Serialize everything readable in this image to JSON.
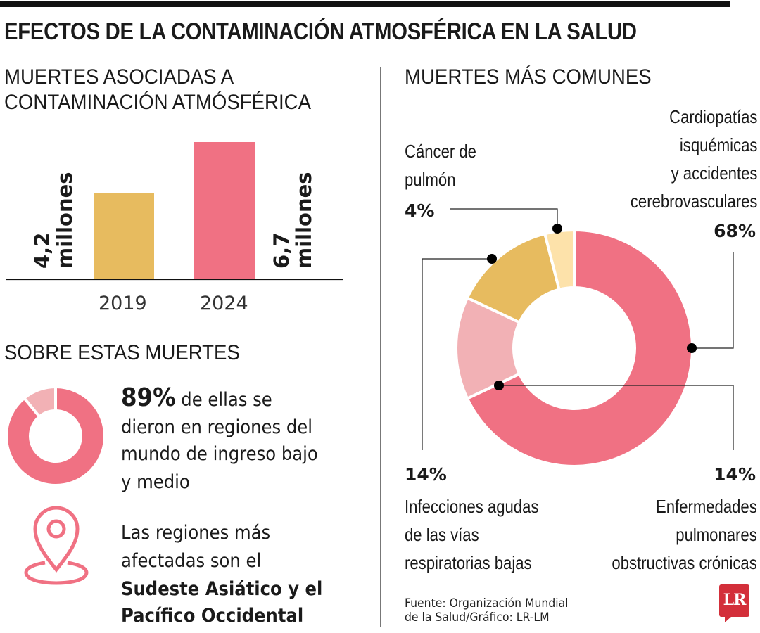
{
  "title": "EFECTOS DE LA CONTAMINACIÓN ATMOSFÉRICA EN LA SALUD",
  "colors": {
    "pink": "#f07183",
    "light_pink": "#f2b1b5",
    "gold": "#e7bb5f",
    "pale_yellow": "#fde2aa",
    "text": "#1a1a1a",
    "brand_red": "#d32f3a"
  },
  "bar_section": {
    "title_line1": "MUERTES ASOCIADAS A",
    "title_line2": "CONTAMINACIÓN ATMÓSFÉRICA"
  },
  "about_section": {
    "title": "SOBRE ESTAS MUERTES",
    "stat_value": "89%",
    "stat_text_1": " de ellas se",
    "stat_text_2": "dieron en regiones del",
    "stat_text_3": "mundo de ingreso bajo",
    "stat_text_4": "y medio",
    "regions_1": "Las regiones más",
    "regions_2": "afectadas son el",
    "regions_bold_1": "Sudeste Asiático y el",
    "regions_bold_2": "Pacífico Occidental",
    "icon": "map-pin-icon"
  },
  "donut_section": {
    "title": "MUERTES MÁS COMUNES"
  },
  "source": {
    "line1": "Fuente: Organización Mundial",
    "line2": "de la Salud/Gráfico: LR-LM"
  },
  "logo": {
    "text": "LR"
  },
  "chart_data": [
    {
      "type": "bar",
      "categories": [
        "2019",
        "2024"
      ],
      "values": [
        4.2,
        6.7
      ],
      "unit": "millones",
      "data_labels": [
        {
          "value": "4,2",
          "unit": "millones"
        },
        {
          "value": "6,7",
          "unit": "millones"
        }
      ],
      "colors": [
        "#e7bb5f",
        "#f07183"
      ],
      "ylim": [
        0,
        6.7
      ],
      "grid": false
    },
    {
      "type": "pie",
      "donut": true,
      "values": [
        89,
        11
      ],
      "colors": [
        "#f07183",
        "#f2b1b5"
      ]
    },
    {
      "type": "pie",
      "donut": true,
      "slices": [
        {
          "label_lines": [
            "Cardiopatías",
            "isquémicas",
            "y accidentes",
            "cerebrovasculares"
          ],
          "value": 68,
          "pct": "68%",
          "color": "#f07183"
        },
        {
          "label_lines": [
            "Enfermedades",
            "pulmonares",
            "obstructivas crónicas"
          ],
          "value": 14,
          "pct": "14%",
          "color": "#f2b1b5"
        },
        {
          "label_lines": [
            "Infecciones agudas",
            "de las vías",
            "respiratorias bajas"
          ],
          "value": 14,
          "pct": "14%",
          "color": "#e7bb5f"
        },
        {
          "label_lines": [
            "Cáncer de",
            "pulmón"
          ],
          "value": 4,
          "pct": "4%",
          "color": "#fde2aa"
        }
      ]
    }
  ]
}
